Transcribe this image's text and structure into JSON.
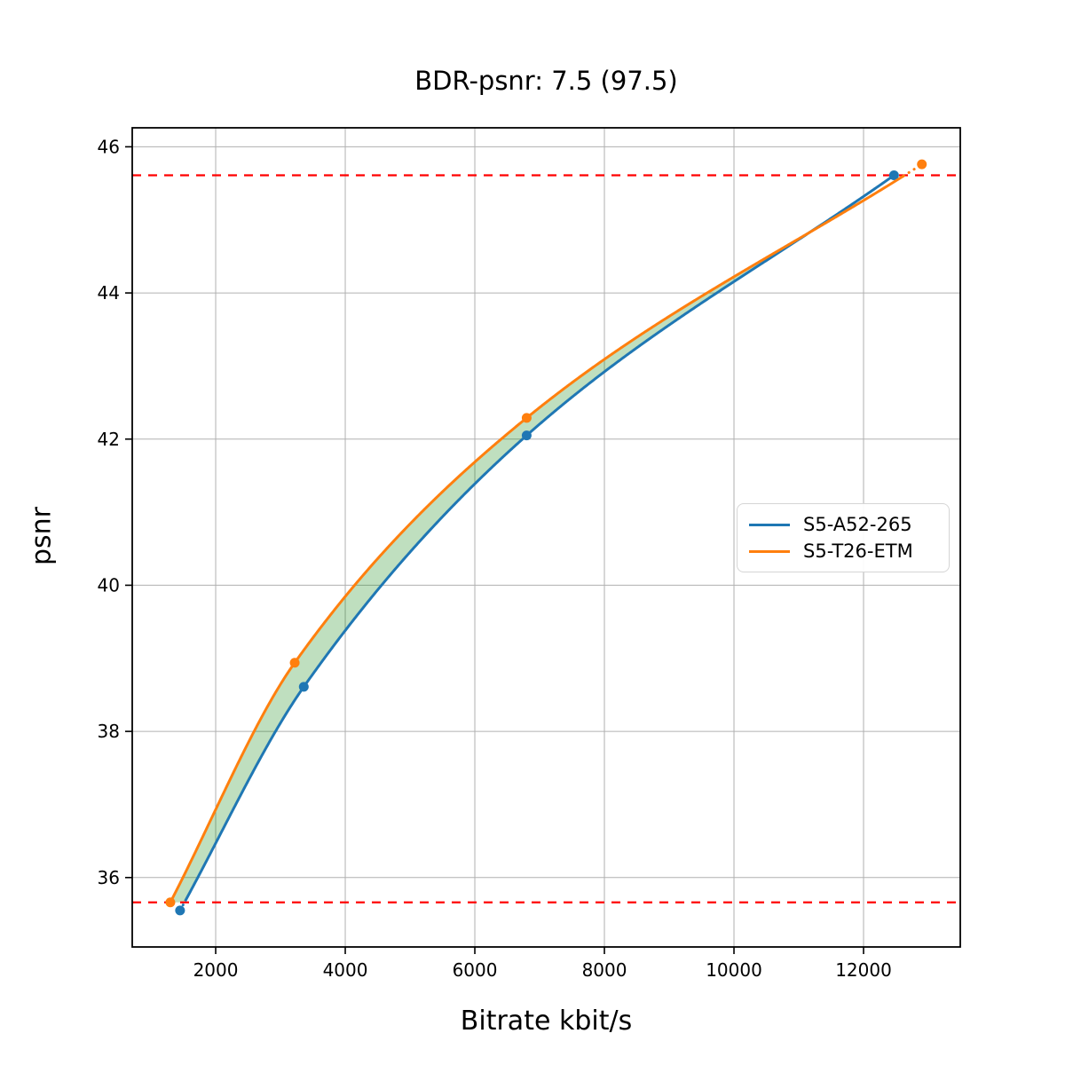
{
  "title": "BDR-psnr: 7.5 (97.5)",
  "legend": {
    "entries": [
      "S5-A52-265",
      "S5-T26-ETM"
    ],
    "position": "center-right"
  },
  "colors": {
    "series_blue": "#1f77b4",
    "series_orange": "#ff7f0e",
    "hline_red": "#ff0000",
    "fill_green": "rgba(0,128,0,0.25)",
    "grid": "#b0b0b0",
    "spine": "#000000",
    "text": "#000000"
  },
  "chart_data": {
    "type": "line",
    "title": "BDR-psnr: 7.5 (97.5)",
    "xlabel": "Bitrate kbit/s",
    "ylabel": "psnr",
    "xlim": [
      712,
      13493
    ],
    "ylim": [
      35.05,
      46.26
    ],
    "xticks": [
      2000,
      4000,
      6000,
      8000,
      10000,
      12000
    ],
    "yticks": [
      36,
      38,
      40,
      42,
      44,
      46
    ],
    "grid": true,
    "legend_position": "center-right",
    "series": [
      {
        "name": "S5-A52-265",
        "color": "#1f77b4",
        "marker": "circle",
        "points": [
          [
            1450,
            35.55
          ],
          [
            3360,
            38.61
          ],
          [
            6800,
            42.05
          ],
          [
            12470,
            45.61
          ]
        ]
      },
      {
        "name": "S5-T26-ETM",
        "color": "#ff7f0e",
        "marker": "circle",
        "points": [
          [
            1300,
            35.66
          ],
          [
            3220,
            38.94
          ],
          [
            6800,
            42.29
          ],
          [
            12900,
            45.76
          ]
        ]
      }
    ],
    "hlines": [
      {
        "y": 45.61,
        "color": "#ff0000",
        "style": "dashed"
      },
      {
        "y": 35.66,
        "color": "#ff0000",
        "style": "dashed"
      }
    ],
    "fill_between": {
      "color": "#008000",
      "alpha": 0.25,
      "psnr_range": [
        35.66,
        45.61
      ]
    },
    "extrapolation_style": "dotted"
  }
}
